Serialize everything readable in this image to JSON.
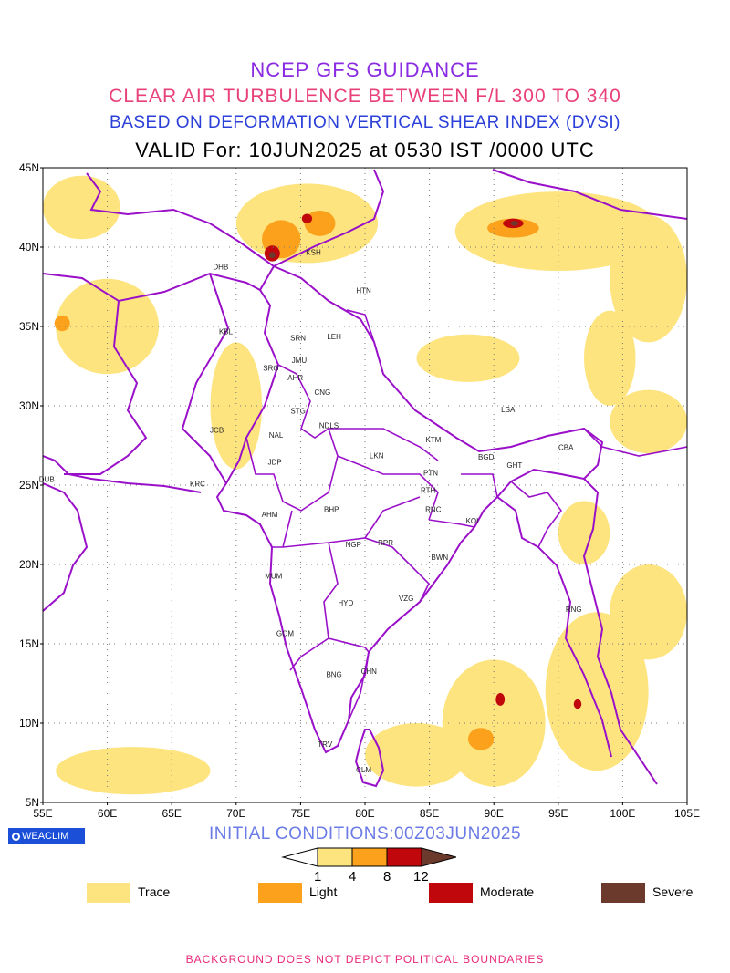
{
  "titles": {
    "line1": "NCEP GFS GUIDANCE",
    "line2": "CLEAR AIR TURBULENCE BETWEEN F/L 300 TO 340",
    "line3": "BASED ON DEFORMATION VERTICAL SHEAR INDEX (DVSI)",
    "line4": "VALID For: 10JUN2025 at 0530 IST /0000 UTC"
  },
  "axes": {
    "lat_ticks": [
      "45N",
      "40N",
      "35N",
      "30N",
      "25N",
      "20N",
      "15N",
      "10N",
      "5N"
    ],
    "lon_ticks": [
      "55E",
      "60E",
      "65E",
      "70E",
      "75E",
      "80E",
      "85E",
      "90E",
      "95E",
      "100E",
      "105E"
    ]
  },
  "stations": [
    {
      "code": "KSH",
      "lon": 76.0,
      "lat": 39.5
    },
    {
      "code": "DHB",
      "lon": 68.8,
      "lat": 38.6
    },
    {
      "code": "HTN",
      "lon": 79.9,
      "lat": 37.1
    },
    {
      "code": "KBL",
      "lon": 69.2,
      "lat": 34.5
    },
    {
      "code": "LEH",
      "lon": 77.6,
      "lat": 34.2
    },
    {
      "code": "SRN",
      "lon": 74.8,
      "lat": 34.1
    },
    {
      "code": "JMU",
      "lon": 74.9,
      "lat": 32.7
    },
    {
      "code": "SRG",
      "lon": 72.7,
      "lat": 32.2
    },
    {
      "code": "AHR",
      "lon": 74.6,
      "lat": 31.6
    },
    {
      "code": "CNG",
      "lon": 76.7,
      "lat": 30.7
    },
    {
      "code": "STG",
      "lon": 74.8,
      "lat": 29.5
    },
    {
      "code": "NDLS",
      "lon": 77.2,
      "lat": 28.6
    },
    {
      "code": "LSA",
      "lon": 91.1,
      "lat": 29.6
    },
    {
      "code": "JCB",
      "lon": 68.5,
      "lat": 28.3
    },
    {
      "code": "NAL",
      "lon": 73.1,
      "lat": 28.0
    },
    {
      "code": "KTM",
      "lon": 85.3,
      "lat": 27.7
    },
    {
      "code": "BGD",
      "lon": 89.4,
      "lat": 26.6
    },
    {
      "code": "CBA",
      "lon": 95.6,
      "lat": 27.2
    },
    {
      "code": "GHT",
      "lon": 91.6,
      "lat": 26.1
    },
    {
      "code": "JDP",
      "lon": 73.0,
      "lat": 26.3
    },
    {
      "code": "LKN",
      "lon": 80.9,
      "lat": 26.7
    },
    {
      "code": "PTN",
      "lon": 85.1,
      "lat": 25.6
    },
    {
      "code": "DUB",
      "lon": 55.3,
      "lat": 25.2
    },
    {
      "code": "KRC",
      "lon": 67.0,
      "lat": 24.9
    },
    {
      "code": "RTH",
      "lon": 84.9,
      "lat": 24.5
    },
    {
      "code": "AHM",
      "lon": 72.6,
      "lat": 23.0
    },
    {
      "code": "BHP",
      "lon": 77.4,
      "lat": 23.3
    },
    {
      "code": "RNC",
      "lon": 85.3,
      "lat": 23.3
    },
    {
      "code": "KOL",
      "lon": 88.4,
      "lat": 22.6
    },
    {
      "code": "NGP",
      "lon": 79.1,
      "lat": 21.1
    },
    {
      "code": "RPR",
      "lon": 81.6,
      "lat": 21.2
    },
    {
      "code": "BWN",
      "lon": 85.8,
      "lat": 20.3
    },
    {
      "code": "MUM",
      "lon": 72.9,
      "lat": 19.1
    },
    {
      "code": "HYD",
      "lon": 78.5,
      "lat": 17.4
    },
    {
      "code": "VZG",
      "lon": 83.2,
      "lat": 17.7
    },
    {
      "code": "RNG",
      "lon": 96.2,
      "lat": 17.0
    },
    {
      "code": "GOM",
      "lon": 73.8,
      "lat": 15.5
    },
    {
      "code": "CHN",
      "lon": 80.3,
      "lat": 13.1
    },
    {
      "code": "BNG",
      "lon": 77.6,
      "lat": 12.9
    },
    {
      "code": "TRV",
      "lon": 76.9,
      "lat": 8.5
    },
    {
      "code": "CLM",
      "lon": 79.9,
      "lat": 6.9
    }
  ],
  "extent": {
    "lon_min": 55,
    "lon_max": 105,
    "lat_min": 5,
    "lat_max": 45
  },
  "turbulence_areas": [
    {
      "level": "trace",
      "lon": 75.5,
      "lat": 41.5,
      "rx": 5.5,
      "ry": 2.5
    },
    {
      "level": "trace",
      "lon": 58,
      "lat": 42.5,
      "rx": 3,
      "ry": 2
    },
    {
      "level": "trace",
      "lon": 95,
      "lat": 41,
      "rx": 8,
      "ry": 2.5
    },
    {
      "level": "trace",
      "lon": 102,
      "lat": 38,
      "rx": 3,
      "ry": 4
    },
    {
      "level": "trace",
      "lon": 60,
      "lat": 35,
      "rx": 4,
      "ry": 3
    },
    {
      "level": "trace",
      "lon": 102,
      "lat": 29,
      "rx": 3,
      "ry": 2
    },
    {
      "level": "trace",
      "lon": 88,
      "lat": 33,
      "rx": 4,
      "ry": 1.5
    },
    {
      "level": "trace",
      "lon": 70,
      "lat": 30,
      "rx": 2,
      "ry": 4
    },
    {
      "level": "trace",
      "lon": 99,
      "lat": 33,
      "rx": 2,
      "ry": 3
    },
    {
      "level": "trace",
      "lon": 90,
      "lat": 10,
      "rx": 4,
      "ry": 4
    },
    {
      "level": "trace",
      "lon": 98,
      "lat": 12,
      "rx": 4,
      "ry": 5
    },
    {
      "level": "trace",
      "lon": 62,
      "lat": 7,
      "rx": 6,
      "ry": 1.5
    },
    {
      "level": "trace",
      "lon": 84,
      "lat": 8,
      "rx": 4,
      "ry": 2
    },
    {
      "level": "trace",
      "lon": 102,
      "lat": 17,
      "rx": 3,
      "ry": 3
    },
    {
      "level": "trace",
      "lon": 97,
      "lat": 22,
      "rx": 2,
      "ry": 2
    },
    {
      "level": "light",
      "lon": 73.5,
      "lat": 40.5,
      "rx": 1.5,
      "ry": 1.2
    },
    {
      "level": "light",
      "lon": 91.5,
      "lat": 41.2,
      "rx": 2,
      "ry": 0.6
    },
    {
      "level": "light",
      "lon": 76.5,
      "lat": 41.5,
      "rx": 1.2,
      "ry": 0.8
    },
    {
      "level": "light",
      "lon": 56.5,
      "lat": 35.2,
      "rx": 0.6,
      "ry": 0.5
    },
    {
      "level": "light",
      "lon": 89,
      "lat": 9,
      "rx": 1,
      "ry": 0.7
    },
    {
      "level": "moderate",
      "lon": 72.8,
      "lat": 39.6,
      "rx": 0.6,
      "ry": 0.5
    },
    {
      "level": "moderate",
      "lon": 91.5,
      "lat": 41.5,
      "rx": 0.8,
      "ry": 0.3
    },
    {
      "level": "moderate",
      "lon": 75.5,
      "lat": 41.8,
      "rx": 0.4,
      "ry": 0.3
    },
    {
      "level": "moderate",
      "lon": 90.5,
      "lat": 11.5,
      "rx": 0.35,
      "ry": 0.4
    },
    {
      "level": "moderate",
      "lon": 96.5,
      "lat": 11.2,
      "rx": 0.3,
      "ry": 0.3
    },
    {
      "level": "severe",
      "lon": 72.8,
      "lat": 39.5,
      "rx": 0.25,
      "ry": 0.2
    },
    {
      "level": "severe",
      "lon": 91.6,
      "lat": 41.5,
      "rx": 0.3,
      "ry": 0.15
    }
  ],
  "colors": {
    "trace": "#fde47f",
    "light": "#fba11c",
    "moderate": "#c0070c",
    "severe": "#6b3a2c",
    "boundary": "#9a10c9",
    "grid": "#7a7a7a"
  },
  "logo": {
    "label": "WEACLIM"
  },
  "initial_conditions": "INITIAL CONDITIONS:00Z03JUN2025",
  "colorbar": {
    "labels": [
      "1",
      "4",
      "8",
      "12"
    ]
  },
  "legend": [
    {
      "label": "Trace",
      "color": "#fde47f"
    },
    {
      "label": "Light",
      "color": "#fba11c"
    },
    {
      "label": "Moderate",
      "color": "#c0070c"
    },
    {
      "label": "Severe",
      "color": "#6b3a2c"
    }
  ],
  "footer": "BACKGROUND DOES NOT DEPICT POLITICAL BOUNDARIES"
}
